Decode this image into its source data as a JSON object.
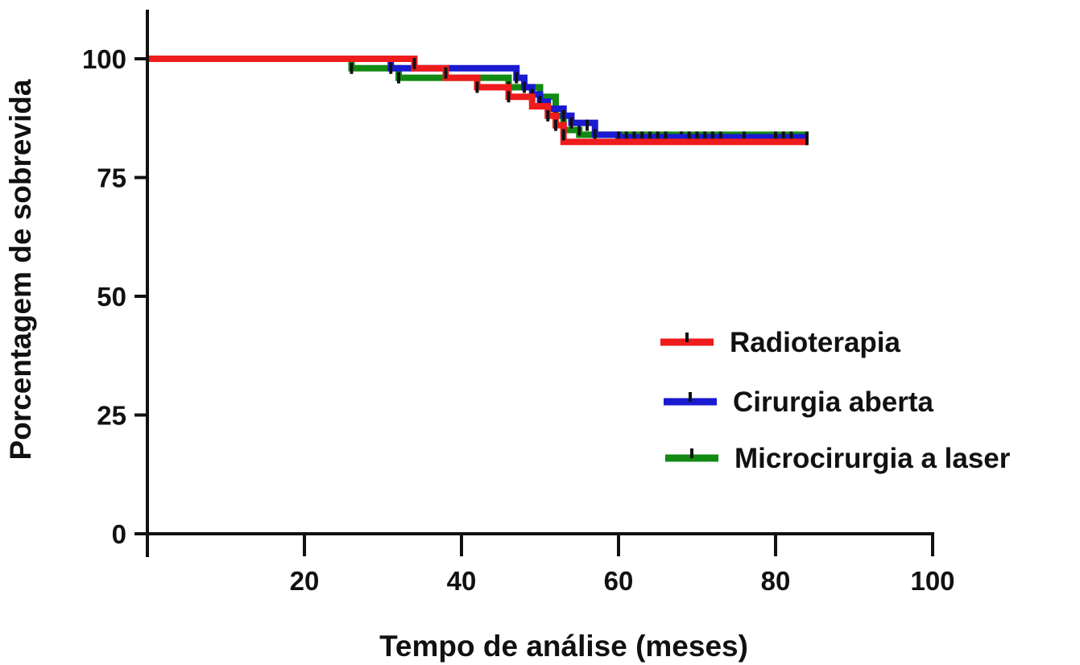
{
  "chart_data": {
    "type": "line",
    "subtype": "kaplan-meier step",
    "title": "",
    "xlabel": "Tempo de análise (meses)",
    "ylabel": "Porcentagem de sobrevida",
    "xlim": [
      0,
      100
    ],
    "ylim": [
      0,
      100
    ],
    "x_ticks": [
      20,
      40,
      60,
      80,
      100
    ],
    "y_ticks": [
      0,
      25,
      50,
      75,
      100
    ],
    "grid": false,
    "legend_position": "right-center",
    "series": [
      {
        "name": "Radioterapia",
        "color": "#ee1c1c",
        "steps": [
          [
            0,
            100
          ],
          [
            34,
            98
          ],
          [
            38,
            96
          ],
          [
            42,
            94
          ],
          [
            46,
            92
          ],
          [
            49,
            90
          ],
          [
            51,
            88
          ],
          [
            52,
            86
          ],
          [
            53,
            82.5
          ],
          [
            84,
            82.5
          ]
        ],
        "censored": [
          [
            34,
            99
          ],
          [
            38,
            97
          ],
          [
            42,
            94
          ],
          [
            46,
            92
          ],
          [
            51,
            88
          ],
          [
            52,
            86
          ],
          [
            53,
            84
          ],
          [
            84,
            83
          ]
        ]
      },
      {
        "name": "Cirurgia aberta",
        "color": "#1a1ad0",
        "steps": [
          [
            0,
            100
          ],
          [
            31,
            98
          ],
          [
            47,
            96
          ],
          [
            48,
            94
          ],
          [
            49,
            92.5
          ],
          [
            50,
            91
          ],
          [
            51,
            89.5
          ],
          [
            53,
            88
          ],
          [
            54,
            86.5
          ],
          [
            57,
            84
          ],
          [
            60,
            83.5
          ],
          [
            84,
            83.5
          ]
        ],
        "censored": [
          [
            31,
            98
          ],
          [
            47,
            96
          ],
          [
            48,
            94
          ],
          [
            49,
            92.5
          ],
          [
            50,
            91
          ],
          [
            51,
            89.5
          ],
          [
            53,
            88
          ],
          [
            54,
            86.5
          ],
          [
            56,
            86
          ],
          [
            57,
            84
          ],
          [
            60,
            83.5
          ],
          [
            61,
            83.5
          ],
          [
            62,
            83.5
          ],
          [
            63,
            83.5
          ],
          [
            64,
            83.5
          ],
          [
            65,
            83.5
          ],
          [
            66,
            83.5
          ],
          [
            69,
            83.5
          ],
          [
            70,
            83.5
          ],
          [
            71,
            83.5
          ],
          [
            72,
            83.5
          ],
          [
            73,
            83.5
          ],
          [
            76,
            83.5
          ],
          [
            80,
            83.5
          ],
          [
            81,
            83.5
          ],
          [
            82,
            83.5
          ],
          [
            84,
            83.5
          ]
        ]
      },
      {
        "name": "Microcirurgia a laser",
        "color": "#138a13",
        "steps": [
          [
            0,
            100
          ],
          [
            26,
            98
          ],
          [
            32,
            96
          ],
          [
            46,
            94
          ],
          [
            50,
            92
          ],
          [
            52,
            88
          ],
          [
            53,
            85
          ],
          [
            55,
            84
          ],
          [
            84,
            84
          ]
        ],
        "censored": [
          [
            26,
            98
          ],
          [
            32,
            96
          ],
          [
            46,
            94
          ],
          [
            50,
            92
          ],
          [
            52,
            88
          ],
          [
            53,
            85
          ],
          [
            55,
            85
          ],
          [
            68,
            83.5
          ]
        ]
      }
    ]
  }
}
